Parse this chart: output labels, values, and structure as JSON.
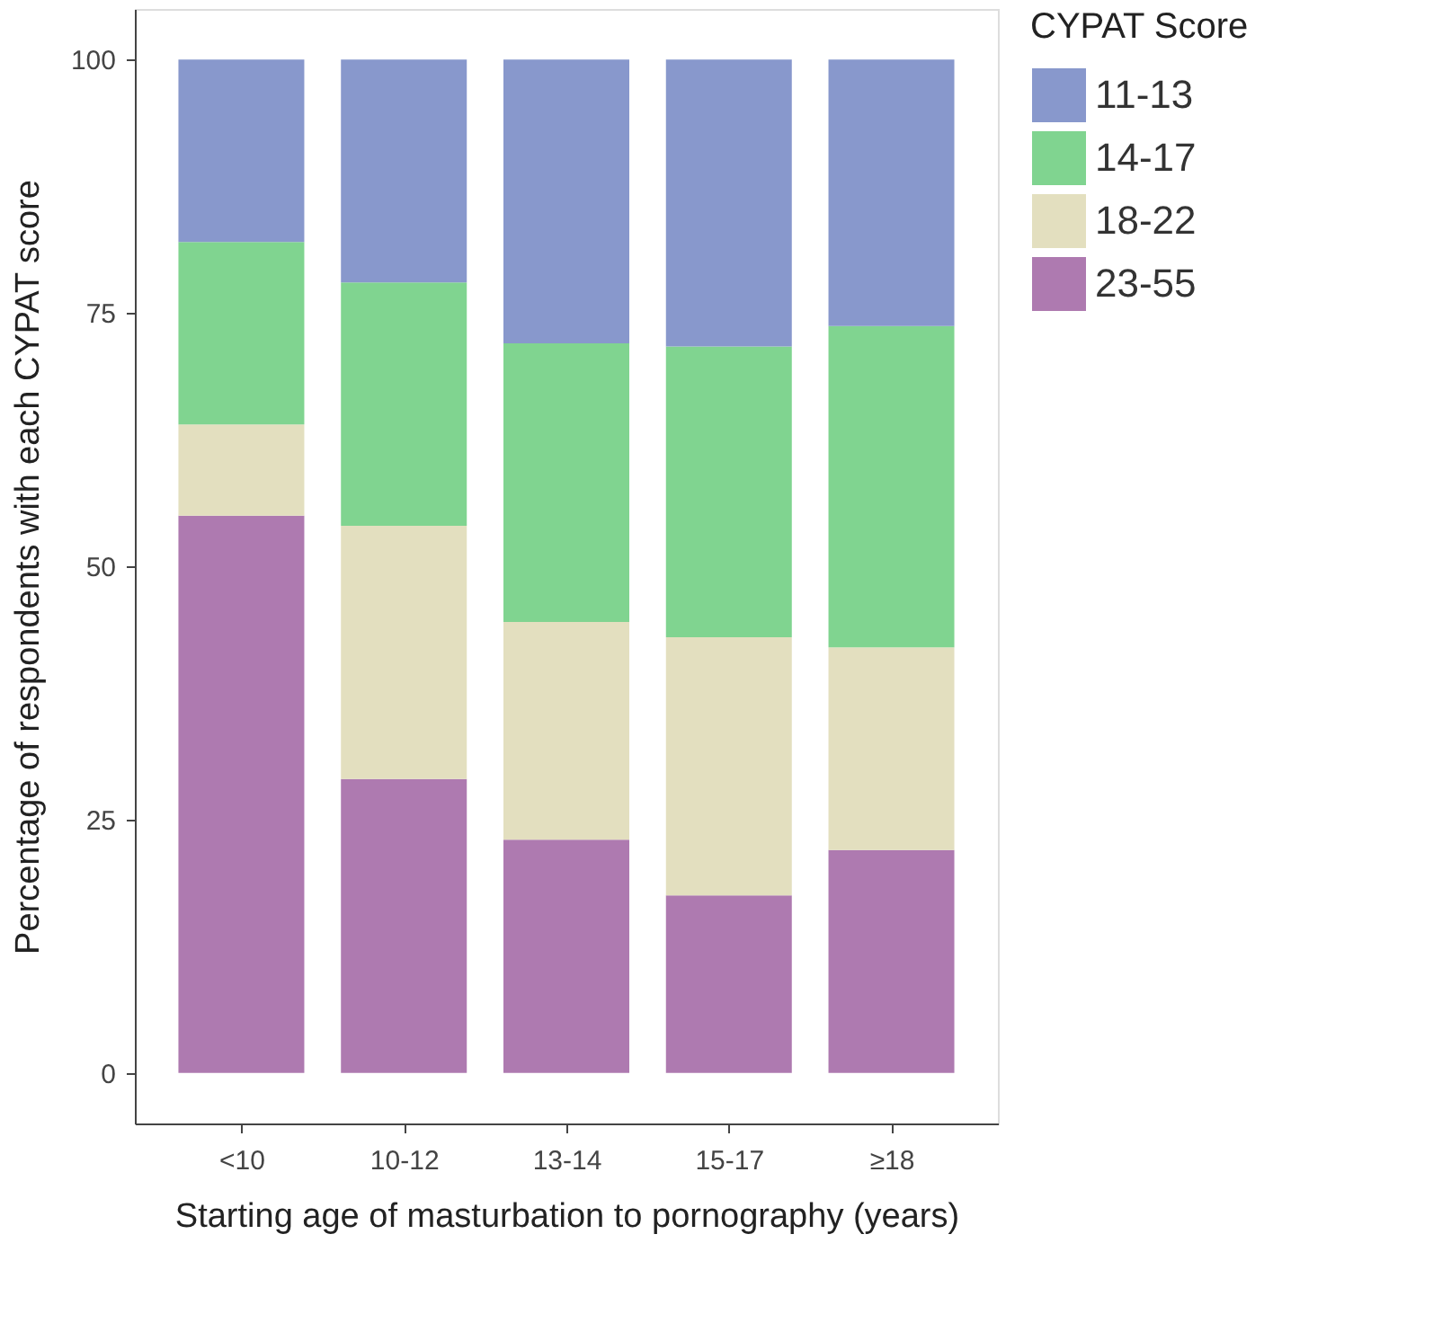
{
  "chart_data": {
    "type": "bar",
    "stacked": true,
    "xlabel": "Starting age of masturbation to pornography (years)",
    "ylabel": "Percentage of respondents with each CYPAT score",
    "legend_title": "CYPAT Score",
    "legend": "right",
    "grid": false,
    "categories": [
      "<10",
      "10-12",
      "13-14",
      "15-17",
      "≥18"
    ],
    "ylim": [
      -5,
      105
    ],
    "yticks": [
      0,
      25,
      50,
      75,
      100
    ],
    "series": [
      {
        "name": "23-55",
        "color": "#ae7ab0",
        "values": [
          55,
          29,
          23,
          17.5,
          22
        ]
      },
      {
        "name": "18-22",
        "color": "#e3dfbf",
        "values": [
          9,
          25,
          21.5,
          25.5,
          20
        ]
      },
      {
        "name": "14-17",
        "color": "#80d490",
        "values": [
          18,
          24,
          27.5,
          28.7,
          31.7
        ]
      },
      {
        "name": "11-13",
        "color": "#8898cc",
        "values": [
          18,
          22,
          28,
          28.3,
          26.3
        ]
      }
    ]
  }
}
